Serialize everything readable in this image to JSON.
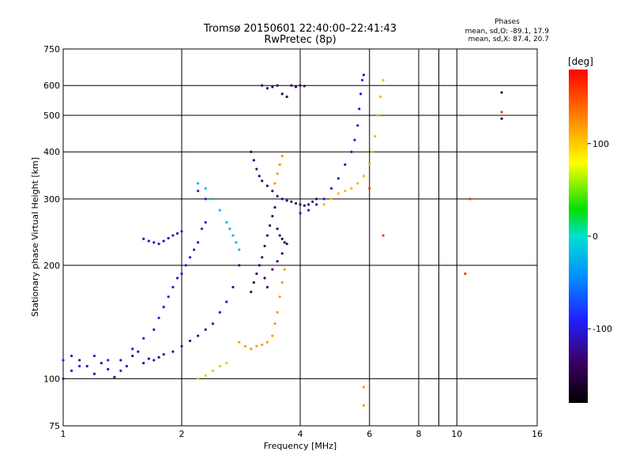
{
  "chart_data": {
    "type": "scatter",
    "title": "Tromsø 20150601 22:40:00–22:41:43",
    "subtitle": "RwPretec (8p)",
    "xlabel": "Frequency [MHz]",
    "ylabel": "Stationary phase Virtual Height [km]",
    "x_scale": "log",
    "y_scale": "log",
    "xlim": [
      1,
      16
    ],
    "ylim": [
      75,
      750
    ],
    "grid": true,
    "x_ticks": [
      "1",
      "2",
      "4",
      "6",
      "8",
      "10",
      "16"
    ],
    "x_tick_values": [
      1,
      2,
      4,
      6,
      8,
      10,
      16
    ],
    "y_ticks": [
      "75",
      "100",
      "200",
      "300",
      "400",
      "500",
      "600",
      "750"
    ],
    "y_tick_values": [
      75,
      100,
      200,
      300,
      400,
      500,
      600,
      750
    ],
    "phases_box": {
      "title": "Phases",
      "line1": "mean, sd,O: -89.1, 17.9",
      "line2": "mean, sd,X:  87.4, 20.7"
    },
    "colorbar": {
      "label": "[deg]",
      "range": [
        -180,
        180
      ],
      "ticks": [
        "100",
        "0",
        "-100"
      ],
      "tick_values": [
        100,
        0,
        -100
      ]
    },
    "series": [
      {
        "phase": -120,
        "points": [
          [
            1.0,
            100
          ],
          [
            1.05,
            105
          ],
          [
            1.1,
            112
          ],
          [
            1.15,
            108
          ],
          [
            1.2,
            103
          ],
          [
            1.25,
            110
          ],
          [
            1.3,
            106
          ],
          [
            1.35,
            101
          ],
          [
            1.4,
            112
          ],
          [
            1.45,
            108
          ],
          [
            1.5,
            115
          ],
          [
            1.55,
            118
          ],
          [
            1.6,
            110
          ],
          [
            1.65,
            113
          ],
          [
            1.7,
            112
          ],
          [
            1.75,
            114
          ],
          [
            1.8,
            116
          ],
          [
            1.9,
            118
          ],
          [
            2.0,
            122
          ],
          [
            2.1,
            126
          ],
          [
            2.2,
            130
          ],
          [
            2.3,
            135
          ],
          [
            2.4,
            140
          ],
          [
            2.5,
            150
          ],
          [
            2.6,
            160
          ],
          [
            2.7,
            175
          ],
          [
            2.8,
            200
          ]
        ]
      },
      {
        "phase": -100,
        "points": [
          [
            1.0,
            112
          ],
          [
            1.05,
            115
          ],
          [
            1.1,
            108
          ],
          [
            1.2,
            115
          ],
          [
            1.3,
            112
          ],
          [
            1.4,
            105
          ],
          [
            1.5,
            120
          ],
          [
            1.6,
            128
          ],
          [
            1.7,
            135
          ],
          [
            1.75,
            145
          ],
          [
            1.8,
            155
          ],
          [
            1.85,
            165
          ],
          [
            1.9,
            175
          ],
          [
            1.95,
            185
          ],
          [
            2.0,
            190
          ],
          [
            2.05,
            200
          ],
          [
            2.1,
            210
          ],
          [
            2.15,
            220
          ],
          [
            2.2,
            230
          ],
          [
            2.25,
            250
          ],
          [
            2.3,
            260
          ],
          [
            2.2,
            315
          ],
          [
            2.3,
            300
          ]
        ]
      },
      {
        "phase": -110,
        "points": [
          [
            1.6,
            235
          ],
          [
            1.65,
            232
          ],
          [
            1.7,
            230
          ],
          [
            1.75,
            228
          ],
          [
            1.8,
            232
          ],
          [
            1.85,
            236
          ],
          [
            1.9,
            240
          ],
          [
            1.95,
            243
          ],
          [
            2.0,
            246
          ]
        ]
      },
      {
        "phase": -130,
        "points": [
          [
            3.0,
            400
          ],
          [
            3.05,
            380
          ],
          [
            3.1,
            360
          ],
          [
            3.15,
            345
          ],
          [
            3.2,
            335
          ],
          [
            3.3,
            325
          ],
          [
            3.4,
            315
          ],
          [
            3.5,
            305
          ],
          [
            3.6,
            300
          ],
          [
            3.7,
            297
          ],
          [
            3.8,
            295
          ],
          [
            3.9,
            292
          ],
          [
            4.0,
            290
          ],
          [
            4.1,
            288
          ],
          [
            4.2,
            290
          ],
          [
            4.3,
            295
          ],
          [
            4.4,
            300
          ]
        ]
      },
      {
        "phase": -135,
        "points": [
          [
            3.0,
            170
          ],
          [
            3.05,
            180
          ],
          [
            3.1,
            190
          ],
          [
            3.15,
            200
          ],
          [
            3.2,
            210
          ],
          [
            3.25,
            225
          ],
          [
            3.3,
            240
          ],
          [
            3.35,
            255
          ],
          [
            3.4,
            270
          ],
          [
            3.45,
            285
          ],
          [
            3.5,
            250
          ],
          [
            3.55,
            240
          ],
          [
            3.6,
            235
          ],
          [
            3.65,
            230
          ],
          [
            3.7,
            228
          ],
          [
            3.3,
            175
          ],
          [
            3.25,
            185
          ],
          [
            3.4,
            195
          ],
          [
            3.5,
            205
          ],
          [
            3.6,
            215
          ]
        ]
      },
      {
        "phase": -140,
        "points": [
          [
            3.2,
            600
          ],
          [
            3.3,
            590
          ],
          [
            3.4,
            595
          ],
          [
            3.5,
            600
          ],
          [
            3.6,
            570
          ],
          [
            3.7,
            560
          ],
          [
            3.8,
            600
          ],
          [
            3.9,
            595
          ],
          [
            4.0,
            600
          ],
          [
            4.1,
            598
          ]
        ]
      },
      {
        "phase": -105,
        "points": [
          [
            4.0,
            275
          ],
          [
            4.2,
            280
          ],
          [
            4.4,
            290
          ],
          [
            4.6,
            300
          ],
          [
            4.8,
            320
          ],
          [
            5.0,
            340
          ],
          [
            5.2,
            370
          ],
          [
            5.4,
            400
          ],
          [
            5.5,
            430
          ],
          [
            5.6,
            470
          ],
          [
            5.65,
            520
          ],
          [
            5.7,
            570
          ],
          [
            5.75,
            620
          ],
          [
            5.8,
            640
          ]
        ]
      },
      {
        "phase": 110,
        "points": [
          [
            4.6,
            290
          ],
          [
            4.8,
            300
          ],
          [
            5.0,
            310
          ],
          [
            5.2,
            315
          ],
          [
            5.4,
            320
          ],
          [
            5.6,
            330
          ],
          [
            5.8,
            345
          ],
          [
            6.0,
            370
          ],
          [
            6.1,
            400
          ],
          [
            6.2,
            440
          ],
          [
            6.3,
            500
          ],
          [
            6.4,
            560
          ],
          [
            6.5,
            620
          ]
        ]
      },
      {
        "phase": 120,
        "points": [
          [
            2.8,
            125
          ],
          [
            2.9,
            122
          ],
          [
            3.0,
            120
          ],
          [
            3.1,
            122
          ],
          [
            3.2,
            123
          ],
          [
            3.3,
            125
          ],
          [
            3.4,
            130
          ],
          [
            3.45,
            140
          ],
          [
            3.5,
            150
          ],
          [
            3.55,
            165
          ],
          [
            3.6,
            180
          ],
          [
            3.65,
            195
          ],
          [
            3.5,
            350
          ],
          [
            3.55,
            370
          ],
          [
            3.6,
            390
          ],
          [
            3.45,
            330
          ]
        ]
      },
      {
        "phase": 60,
        "points": [
          [
            2.4,
            105
          ],
          [
            2.5,
            108
          ],
          [
            2.6,
            110
          ],
          [
            2.2,
            100
          ],
          [
            2.3,
            102
          ]
        ]
      },
      {
        "phase": -20,
        "points": [
          [
            2.2,
            330
          ],
          [
            2.3,
            320
          ],
          [
            2.4,
            300
          ],
          [
            2.5,
            280
          ],
          [
            2.6,
            260
          ],
          [
            2.65,
            250
          ],
          [
            2.7,
            240
          ],
          [
            2.75,
            230
          ],
          [
            2.8,
            220
          ]
        ]
      },
      {
        "phase": 160,
        "points": [
          [
            6.0,
            320
          ],
          [
            6.5,
            240
          ],
          [
            10.5,
            190
          ],
          [
            10.8,
            300
          ],
          [
            13.0,
            510
          ]
        ]
      },
      {
        "phase": -160,
        "points": [
          [
            13.0,
            575
          ],
          [
            13.0,
            490
          ]
        ]
      },
      {
        "phase": 120,
        "points": [
          [
            5.8,
            95
          ],
          [
            5.8,
            85
          ]
        ]
      }
    ]
  }
}
